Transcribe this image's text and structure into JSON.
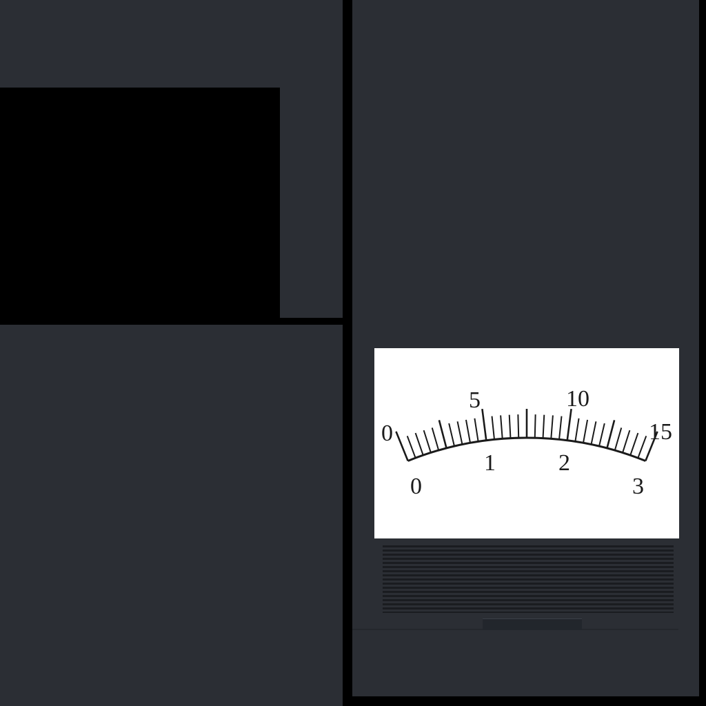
{
  "meter": {
    "scale_upper": {
      "min": 0,
      "max": 15,
      "labels": [
        "0",
        "5",
        "10",
        "15"
      ]
    },
    "scale_lower": {
      "min": 0,
      "max": 3,
      "labels": [
        "0",
        "1",
        "2",
        "3"
      ]
    },
    "divisions": 30,
    "colors": {
      "face": "#ffffff",
      "ink": "#1a1a1a",
      "body": "#2b2e34"
    }
  }
}
